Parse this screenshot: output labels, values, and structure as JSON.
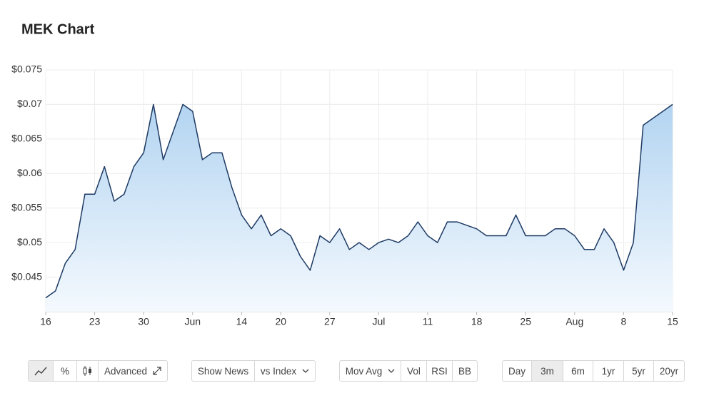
{
  "chart_data": {
    "type": "area",
    "title": "MEK Chart",
    "categories": [
      "16",
      null,
      null,
      null,
      null,
      "23",
      null,
      null,
      null,
      null,
      "30",
      null,
      null,
      null,
      null,
      "Jun",
      null,
      null,
      null,
      null,
      "14",
      null,
      null,
      null,
      "20",
      null,
      null,
      null,
      null,
      "27",
      null,
      null,
      null,
      null,
      "Jul",
      null,
      null,
      null,
      null,
      "11",
      null,
      null,
      null,
      null,
      "18",
      null,
      null,
      null,
      null,
      "25",
      null,
      null,
      null,
      null,
      "Aug",
      null,
      null,
      null,
      null,
      "8",
      null,
      null,
      null,
      null,
      "15"
    ],
    "values": [
      0.042,
      0.043,
      0.047,
      0.049,
      0.057,
      0.057,
      0.061,
      0.056,
      0.057,
      0.061,
      0.063,
      0.07,
      0.062,
      0.066,
      0.07,
      0.069,
      0.062,
      0.063,
      0.063,
      0.058,
      0.054,
      0.052,
      0.054,
      0.051,
      0.052,
      0.051,
      0.048,
      0.046,
      0.051,
      0.05,
      0.052,
      0.049,
      0.05,
      0.049,
      0.05,
      0.0505,
      0.05,
      0.051,
      0.053,
      0.051,
      0.05,
      0.053,
      0.053,
      0.0525,
      0.052,
      0.051,
      0.051,
      0.051,
      0.054,
      0.051,
      0.051,
      0.051,
      0.052,
      0.052,
      0.051,
      0.049,
      0.049,
      0.052,
      0.05,
      0.046,
      0.05,
      0.067,
      0.068,
      0.069,
      0.07
    ],
    "color": "#1d3a63",
    "ylim": [
      0.04,
      0.075
    ],
    "yticks": [
      {
        "value": 0.045,
        "label": "$0.045"
      },
      {
        "value": 0.05,
        "label": "$0.05"
      },
      {
        "value": 0.055,
        "label": "$0.055"
      },
      {
        "value": 0.06,
        "label": "$0.06"
      },
      {
        "value": 0.065,
        "label": "$0.065"
      },
      {
        "value": 0.07,
        "label": "$0.07"
      },
      {
        "value": 0.075,
        "label": "$0.075"
      }
    ],
    "grid": true
  },
  "toolbar": {
    "percent": "%",
    "advanced": "Advanced",
    "overlays": [
      "Show News",
      "vs Index"
    ],
    "studies": [
      "Mov Avg",
      "Vol",
      "RSI",
      "BB"
    ],
    "ranges": [
      "Day",
      "3m",
      "6m",
      "1yr",
      "5yr",
      "20yr"
    ],
    "active_range": "3m"
  }
}
